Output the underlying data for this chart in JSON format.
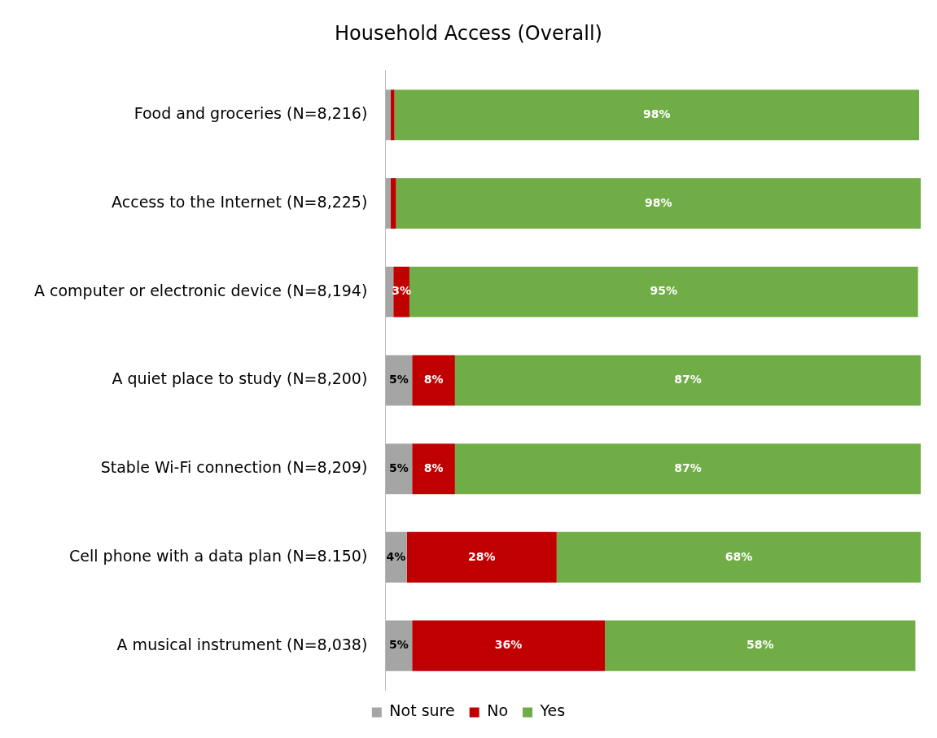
{
  "chart_data": {
    "type": "bar",
    "title": "Household Access (Overall)",
    "orientation": "horizontal",
    "stacked": true,
    "categories": [
      "Food and groceries (N=8,216)",
      "Access to the Internet (N=8,225)",
      "A computer or electronic device (N=8,194)",
      "A quiet place to study (N=8,200)",
      "Stable Wi-Fi connection (N=8,209)",
      "Cell phone with a data plan (N=8.150)",
      "A musical instrument (N=8,038)"
    ],
    "series": [
      {
        "name": "Not sure",
        "color": "#a5a5a5",
        "values": [
          1,
          1,
          1.5,
          5,
          5,
          4,
          5
        ],
        "value_labels": [
          null,
          null,
          null,
          "5%",
          "5%",
          "4%",
          "5%"
        ]
      },
      {
        "name": "No",
        "color": "#c00000",
        "values": [
          0.7,
          1,
          3,
          8,
          8,
          28,
          36
        ],
        "value_labels": [
          null,
          null,
          "3%",
          "8%",
          "8%",
          "28%",
          "36%"
        ]
      },
      {
        "name": "Yes",
        "color": "#70ad47",
        "values": [
          98,
          98,
          95,
          87,
          87,
          68,
          58
        ],
        "value_labels": [
          "98%",
          "98%",
          "95%",
          "87%",
          "87%",
          "68%",
          "58%"
        ]
      }
    ],
    "xlim": [
      0,
      100
    ],
    "tick_labels": "y",
    "grid": false,
    "legend": "bottom"
  }
}
